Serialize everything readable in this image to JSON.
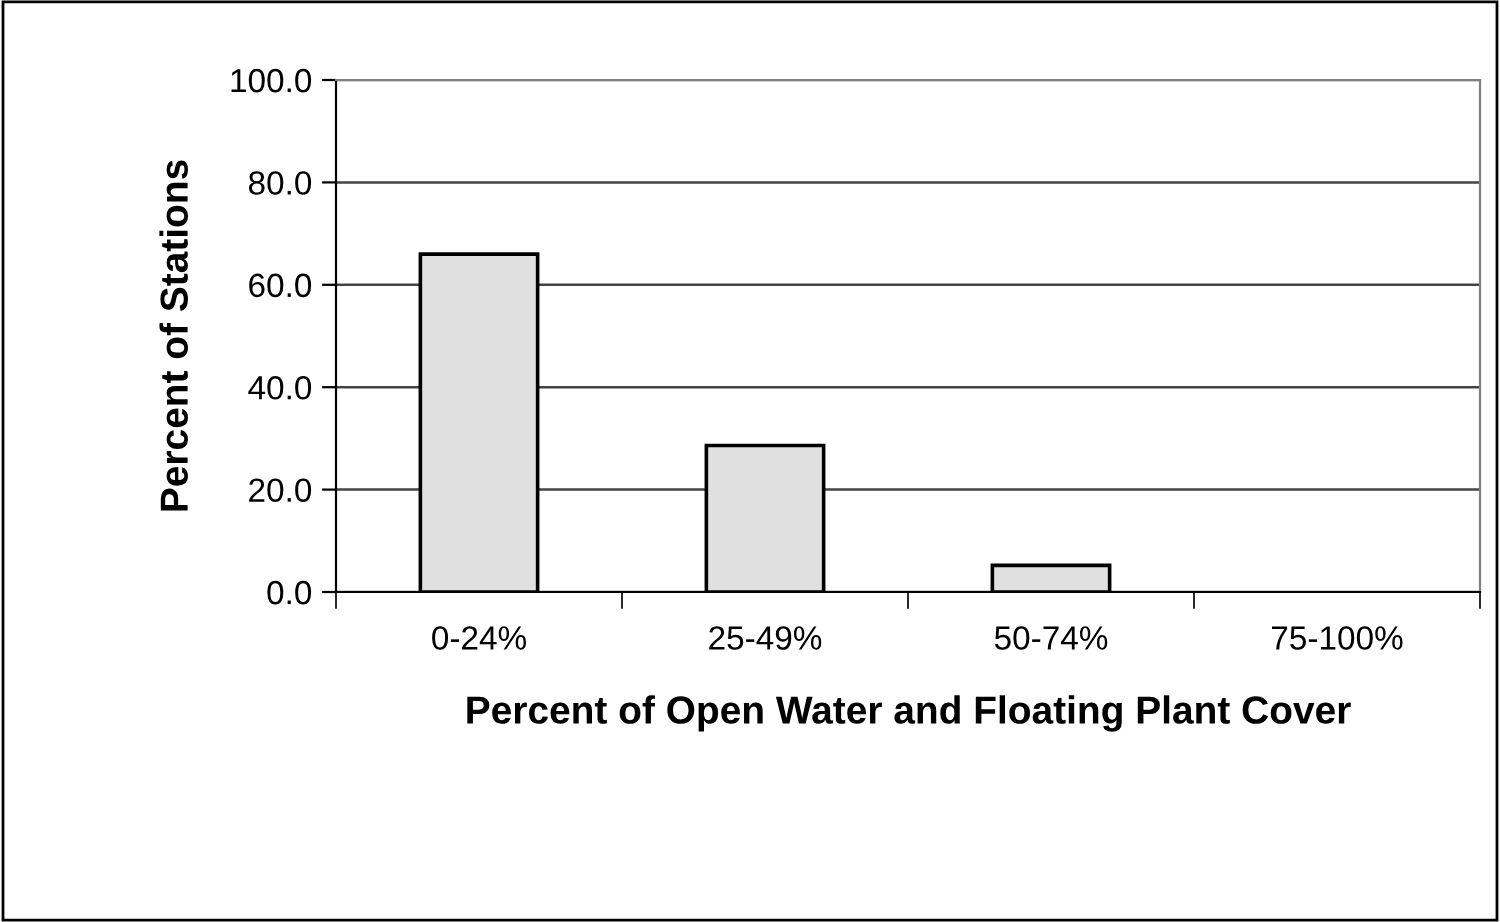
{
  "chart_data": {
    "type": "bar",
    "xlabel": "Percent of Open Water and Floating Plant Cover",
    "ylabel": "Percent of Stations",
    "categories": [
      "0-24%",
      "25-49%",
      "50-74%",
      "75-100%"
    ],
    "values": [
      66.0,
      28.6,
      5.2,
      0.0
    ],
    "color": "#e0e0e0",
    "ylim": [
      0,
      100
    ],
    "yticks": [
      {
        "value": 0,
        "label": "0.0"
      },
      {
        "value": 20,
        "label": "20.0"
      },
      {
        "value": 40,
        "label": "40.0"
      },
      {
        "value": 60,
        "label": "60.0"
      },
      {
        "value": 80,
        "label": "80.0"
      },
      {
        "value": 100,
        "label": "100.0"
      }
    ],
    "grid": "y"
  }
}
